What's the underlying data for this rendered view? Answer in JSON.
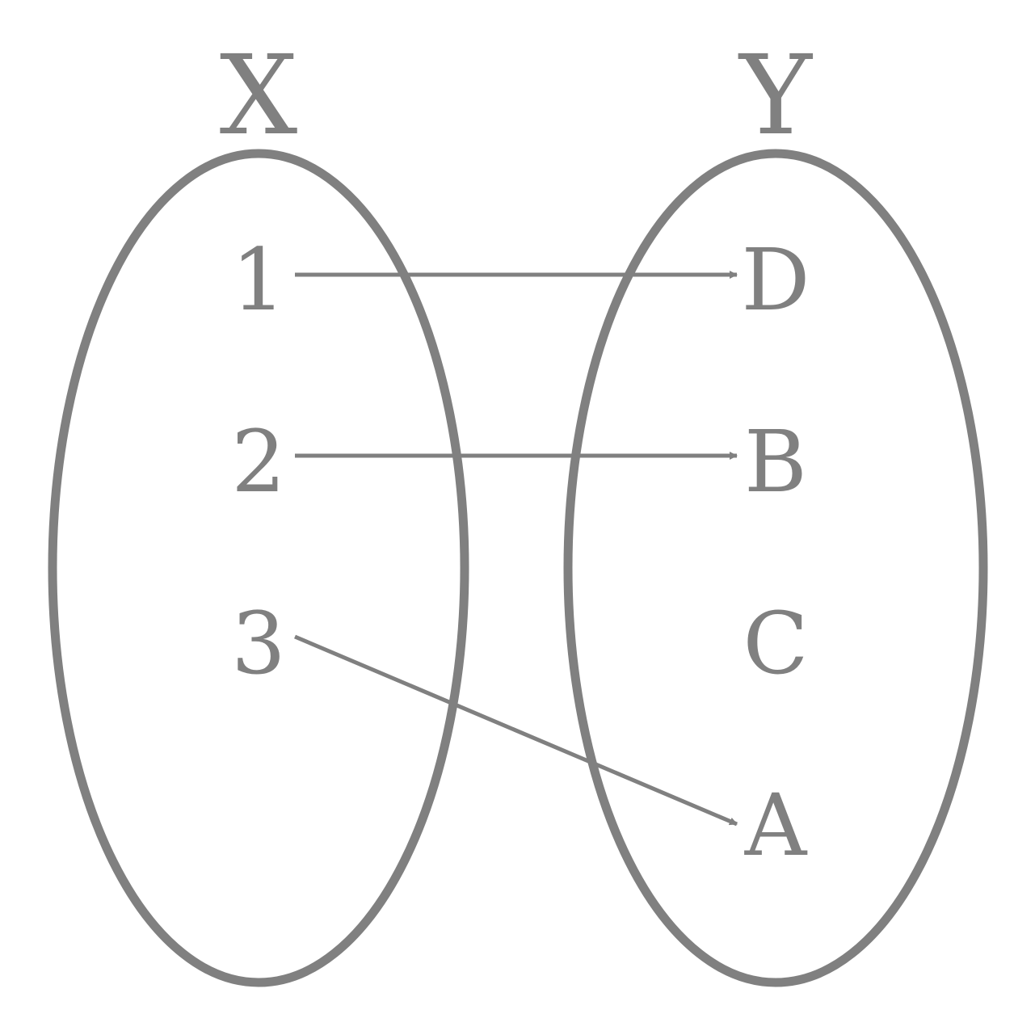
{
  "colors": {
    "stroke": "#808080",
    "text": "#808080",
    "background": "#ffffff"
  },
  "domain_set": {
    "title": "X",
    "elements": [
      "1",
      "2",
      "3"
    ]
  },
  "codomain_set": {
    "title": "Y",
    "elements": [
      "D",
      "B",
      "C",
      "A"
    ]
  },
  "mappings": [
    {
      "from": "1",
      "to": "D"
    },
    {
      "from": "2",
      "to": "B"
    },
    {
      "from": "3",
      "to": "A"
    }
  ]
}
